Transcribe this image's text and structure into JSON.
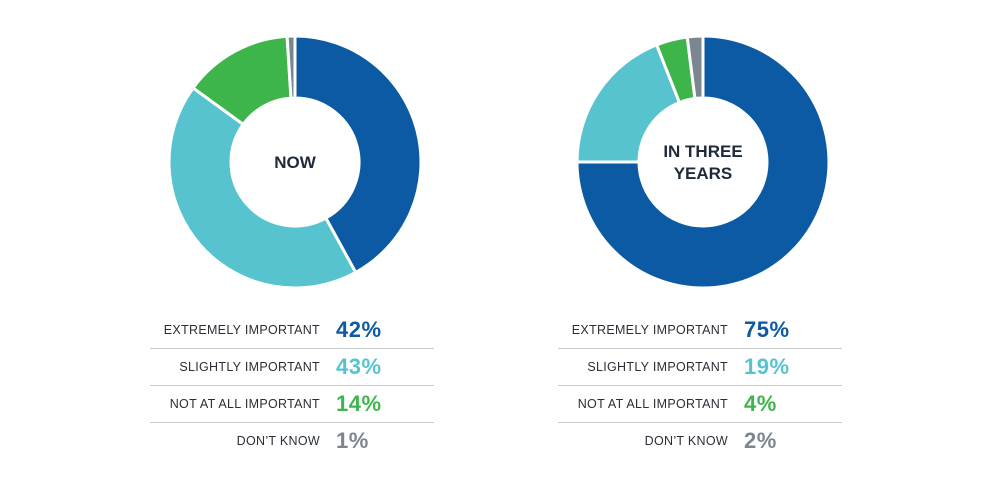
{
  "colors": {
    "extremely": "#0c5aa3",
    "slightly": "#56c3cf",
    "not_at_all": "#3eb54a",
    "dont_know": "#7a8690"
  },
  "chart_data": [
    {
      "type": "pie",
      "title": "NOW",
      "categories": [
        "EXTREMELY IMPORTANT",
        "SLIGHTLY IMPORTANT",
        "NOT AT ALL IMPORTANT",
        "DON’T KNOW"
      ],
      "values": [
        42,
        43,
        14,
        1
      ],
      "value_labels": [
        "42%",
        "43%",
        "14%",
        "1%"
      ],
      "unit": "%"
    },
    {
      "type": "pie",
      "title": "IN THREE\nYEARS",
      "categories": [
        "EXTREMELY IMPORTANT",
        "SLIGHTLY IMPORTANT",
        "NOT AT ALL IMPORTANT",
        "DON’T KNOW"
      ],
      "values": [
        75,
        19,
        4,
        2
      ],
      "value_labels": [
        "75%",
        "19%",
        "4%",
        "2%"
      ],
      "unit": "%"
    }
  ]
}
